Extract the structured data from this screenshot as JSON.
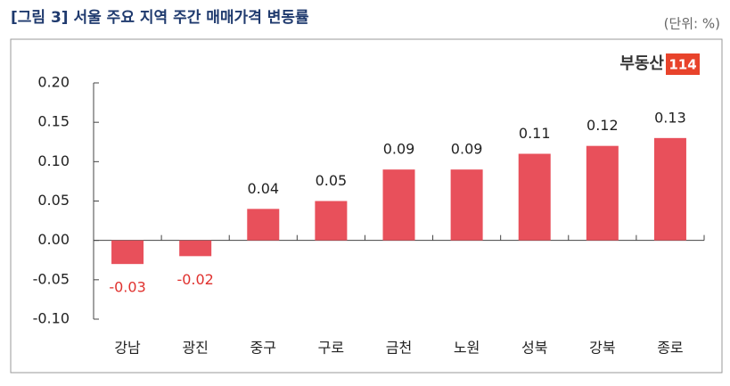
{
  "chart_data": {
    "type": "bar",
    "title": "[그림 3] 서울 주요 지역 주간 매매가격 변동률",
    "unit": "(단위: %)",
    "logo_text": "부동산",
    "logo_badge": "114",
    "categories": [
      "강남",
      "광진",
      "중구",
      "구로",
      "금천",
      "노원",
      "성북",
      "강북",
      "종로"
    ],
    "values": [
      -0.03,
      -0.02,
      0.04,
      0.05,
      0.09,
      0.09,
      0.11,
      0.12,
      0.13
    ],
    "color": "#e8505b",
    "negative_label_color": "#e0322f",
    "ylim": [
      -0.1,
      0.2
    ],
    "yticks": [
      {
        "value": 0.2,
        "label": "0.20"
      },
      {
        "value": 0.15,
        "label": "0.15"
      },
      {
        "value": 0.1,
        "label": "0.10"
      },
      {
        "value": 0.05,
        "label": "0.05"
      },
      {
        "value": 0.0,
        "label": "0.00"
      },
      {
        "value": -0.05,
        "label": "-0.05"
      },
      {
        "value": -0.1,
        "label": "-0.10"
      }
    ],
    "grid": false
  }
}
